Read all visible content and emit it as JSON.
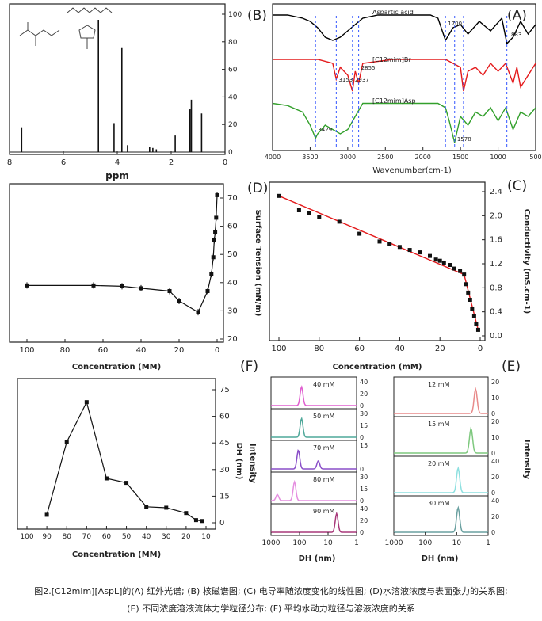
{
  "caption": {
    "line1": "图2.[C12mim][AspL]的(A) 红外光谱; (B) 核磁谱图; (C) 电导率随浓度变化的线性图; (D)水溶液浓度与表面张力的关系图;",
    "line2": "(E) 不同浓度溶液流体力学粒径分布; (F) 平均水动力粒径与溶液浓度的关系"
  },
  "chart_data": [
    {
      "panel": "A",
      "type": "line",
      "xlabel": "Wavenumber(cm-1)",
      "ylabel": "",
      "xlim": [
        500,
        4000
      ],
      "x_ticks": [
        "500",
        "1000",
        "1500",
        "2000",
        "2500",
        "3000",
        "3500",
        "4000"
      ],
      "series": [
        {
          "name": "Aspartic acid",
          "color": "#000000",
          "x": [
            500,
            600,
            700,
            800,
            883,
            950,
            1100,
            1250,
            1400,
            1500,
            1600,
            1700,
            1800,
            1900,
            2000,
            2200,
            2400,
            2600,
            2800,
            2900,
            3000,
            3100,
            3200,
            3300,
            3400,
            3500,
            3600,
            3700,
            3800,
            3900,
            4000
          ],
          "y": [
            0.6,
            0.3,
            0.7,
            0.2,
            0.0,
            0.8,
            0.4,
            0.7,
            0.3,
            0.6,
            0.5,
            0.1,
            0.8,
            0.9,
            0.9,
            0.9,
            0.9,
            0.9,
            0.8,
            0.6,
            0.4,
            0.2,
            0.1,
            0.2,
            0.5,
            0.7,
            0.8,
            0.85,
            0.9,
            0.9,
            0.9
          ]
        },
        {
          "name": "[C12mim]Br",
          "color": "#e41a1c",
          "x": [
            500,
            600,
            700,
            750,
            800,
            900,
            1000,
            1100,
            1200,
            1300,
            1400,
            1460,
            1500,
            1600,
            1700,
            1800,
            2000,
            2400,
            2800,
            2855,
            2900,
            2937,
            3000,
            3100,
            3153,
            3200,
            3400,
            3600,
            3800,
            4000
          ],
          "y": [
            0.8,
            0.5,
            0.2,
            0.7,
            0.3,
            0.8,
            0.6,
            0.8,
            0.5,
            0.7,
            0.6,
            0.1,
            0.7,
            0.8,
            0.9,
            0.9,
            0.9,
            0.9,
            0.8,
            0.3,
            0.6,
            0.1,
            0.5,
            0.7,
            0.4,
            0.8,
            0.9,
            0.9,
            0.9,
            0.9
          ]
        },
        {
          "name": "[C12mim]Asp",
          "color": "#33a02c",
          "x": [
            500,
            600,
            700,
            800,
            900,
            1000,
            1100,
            1200,
            1300,
            1400,
            1500,
            1578,
            1650,
            1700,
            1800,
            2000,
            2400,
            2800,
            2900,
            3000,
            3100,
            3200,
            3300,
            3400,
            3429,
            3500,
            3600,
            3800,
            4000
          ],
          "y": [
            0.8,
            0.6,
            0.7,
            0.3,
            0.8,
            0.5,
            0.8,
            0.6,
            0.7,
            0.4,
            0.6,
            0.0,
            0.5,
            0.8,
            0.9,
            0.9,
            0.9,
            0.9,
            0.6,
            0.3,
            0.2,
            0.3,
            0.4,
            0.2,
            0.1,
            0.4,
            0.7,
            0.85,
            0.9
          ]
        }
      ],
      "annotations": [
        "883",
        "1700",
        "2855",
        "2937",
        "3153",
        "1578",
        "3429"
      ]
    },
    {
      "panel": "B",
      "type": "line",
      "xlabel": "ppm",
      "xlim": [
        0,
        8
      ],
      "x_ticks": [
        "0",
        "2",
        "4",
        "6",
        "8"
      ],
      "ylim": [
        0,
        100
      ],
      "y_ticks": [
        "0",
        "20",
        "40",
        "60",
        "80",
        "100"
      ],
      "peaks_ppm": [
        7.55,
        4.7,
        4.12,
        3.83,
        3.62,
        2.8,
        2.68,
        2.55,
        1.85,
        1.3,
        1.25,
        0.87
      ],
      "peaks_height": [
        18,
        96,
        21,
        76,
        5,
        4,
        3,
        2,
        12,
        31,
        38,
        28
      ]
    },
    {
      "panel": "C",
      "type": "line",
      "xlabel": "Concentration (mM)",
      "ylabel": "Conductivity (mS.cm-1)",
      "xlim": [
        0,
        100
      ],
      "x_ticks": [
        "0",
        "20",
        "40",
        "60",
        "80",
        "100"
      ],
      "ylim": [
        0,
        2.4
      ],
      "y_ticks": [
        "0.0",
        "0.4",
        "0.8",
        "1.2",
        "1.6",
        "2.0",
        "2.4"
      ],
      "x": [
        100,
        90,
        85,
        80,
        70,
        60,
        50,
        45,
        40,
        35,
        30,
        25,
        22,
        20,
        18,
        15,
        13,
        10,
        8,
        7,
        6,
        5,
        4,
        3,
        2,
        1
      ],
      "y": [
        2.33,
        2.09,
        2.05,
        1.98,
        1.9,
        1.7,
        1.57,
        1.53,
        1.48,
        1.43,
        1.39,
        1.33,
        1.27,
        1.25,
        1.22,
        1.18,
        1.12,
        1.08,
        1.02,
        0.86,
        0.72,
        0.6,
        0.45,
        0.33,
        0.2,
        0.1
      ]
    },
    {
      "panel": "D",
      "type": "line",
      "xlabel": "Concentration (MM)",
      "ylabel": "Surface Tension (mN/m)",
      "xlim": [
        0,
        100
      ],
      "x_ticks": [
        "0",
        "20",
        "40",
        "60",
        "80",
        "100"
      ],
      "ylim": [
        20,
        70
      ],
      "y_ticks": [
        "20",
        "30",
        "40",
        "50",
        "60",
        "70"
      ],
      "x": [
        100,
        65,
        50,
        40,
        25,
        20,
        10,
        5,
        3,
        2,
        1.5,
        1,
        0.5,
        0
      ],
      "y": [
        39,
        39,
        38.7,
        38,
        37,
        33.5,
        29.5,
        37,
        43,
        49,
        55,
        58,
        63,
        71
      ]
    },
    {
      "panel": "E",
      "type": "line",
      "xlabel": "DH (nm)",
      "ylabel": "Intensity",
      "x_ticks": [
        "1",
        "10",
        "100",
        "1000"
      ],
      "series": [
        {
          "name": "12 mM",
          "color": "#e88a8a",
          "peak_nm": 2.5,
          "peak": 22
        },
        {
          "name": "15 mM",
          "color": "#7ec87e",
          "peak_nm": 3.5,
          "peak": 30
        },
        {
          "name": "20 mM",
          "color": "#8ee0e0",
          "peak_nm": 9.0,
          "peak": 38
        },
        {
          "name": "30 mM",
          "color": "#6aa0a0",
          "peak_nm": 9.0,
          "peak": 40
        }
      ],
      "panel_y_ticks": [
        [
          "0",
          "10",
          "20"
        ],
        [
          "0",
          "10",
          "20"
        ],
        [
          "0",
          "20",
          "40"
        ],
        [
          "0",
          "20",
          "40"
        ]
      ]
    },
    {
      "panel": "F-left",
      "type": "line",
      "xlabel": "DH (nm)",
      "ylabel": "Intensity",
      "x_ticks": [
        "1",
        "10",
        "100",
        "1000"
      ],
      "series": [
        {
          "name": "40 mM",
          "color": "#e060d0",
          "peaks_nm": [
            85
          ],
          "peaks": [
            30
          ]
        },
        {
          "name": "50 mM",
          "color": "#4fa89a",
          "peaks_nm": [
            85
          ],
          "peaks": [
            25
          ]
        },
        {
          "name": "70 mM",
          "color": "#8a4fc8",
          "peaks_nm": [
            110,
            22
          ],
          "peaks": [
            14,
            6
          ]
        },
        {
          "name": "80 mM",
          "color": "#e58fe0",
          "peaks_nm": [
            150,
            600
          ],
          "peaks": [
            25,
            8
          ]
        },
        {
          "name": "90 mM",
          "color": "#a8387a",
          "peaks_nm": [
            5
          ],
          "peaks": [
            30
          ]
        }
      ],
      "panel_y_ticks": [
        [
          "0",
          "20",
          "40"
        ],
        [
          "0",
          "15",
          "30"
        ],
        [
          "0",
          "15"
        ],
        [
          "0",
          "15",
          "30"
        ],
        [
          "0",
          "20",
          "40"
        ]
      ]
    },
    {
      "panel": "F",
      "type": "line",
      "xlabel": "Concentration (MM)",
      "ylabel": "DH (nm)",
      "xlim": [
        10,
        100
      ],
      "x_ticks": [
        "100",
        "90",
        "80",
        "70",
        "60",
        "50",
        "40",
        "30",
        "20",
        "10"
      ],
      "ylim": [
        0,
        75
      ],
      "y_ticks": [
        "0",
        "15",
        "30",
        "45",
        "60",
        "75"
      ],
      "x": [
        90,
        80,
        70,
        60,
        50,
        40,
        30,
        20,
        15,
        12
      ],
      "y": [
        4.5,
        45.5,
        68,
        25,
        22.5,
        9,
        8.5,
        5.5,
        1.5,
        1
      ]
    }
  ],
  "panel_labels": [
    "(A)",
    "(B)",
    "(C)",
    "(D)",
    "(E)",
    "(F)"
  ],
  "legend_A": [
    "Aspartic acid",
    "[C12mim]Br",
    "[C12mim]Asp"
  ]
}
